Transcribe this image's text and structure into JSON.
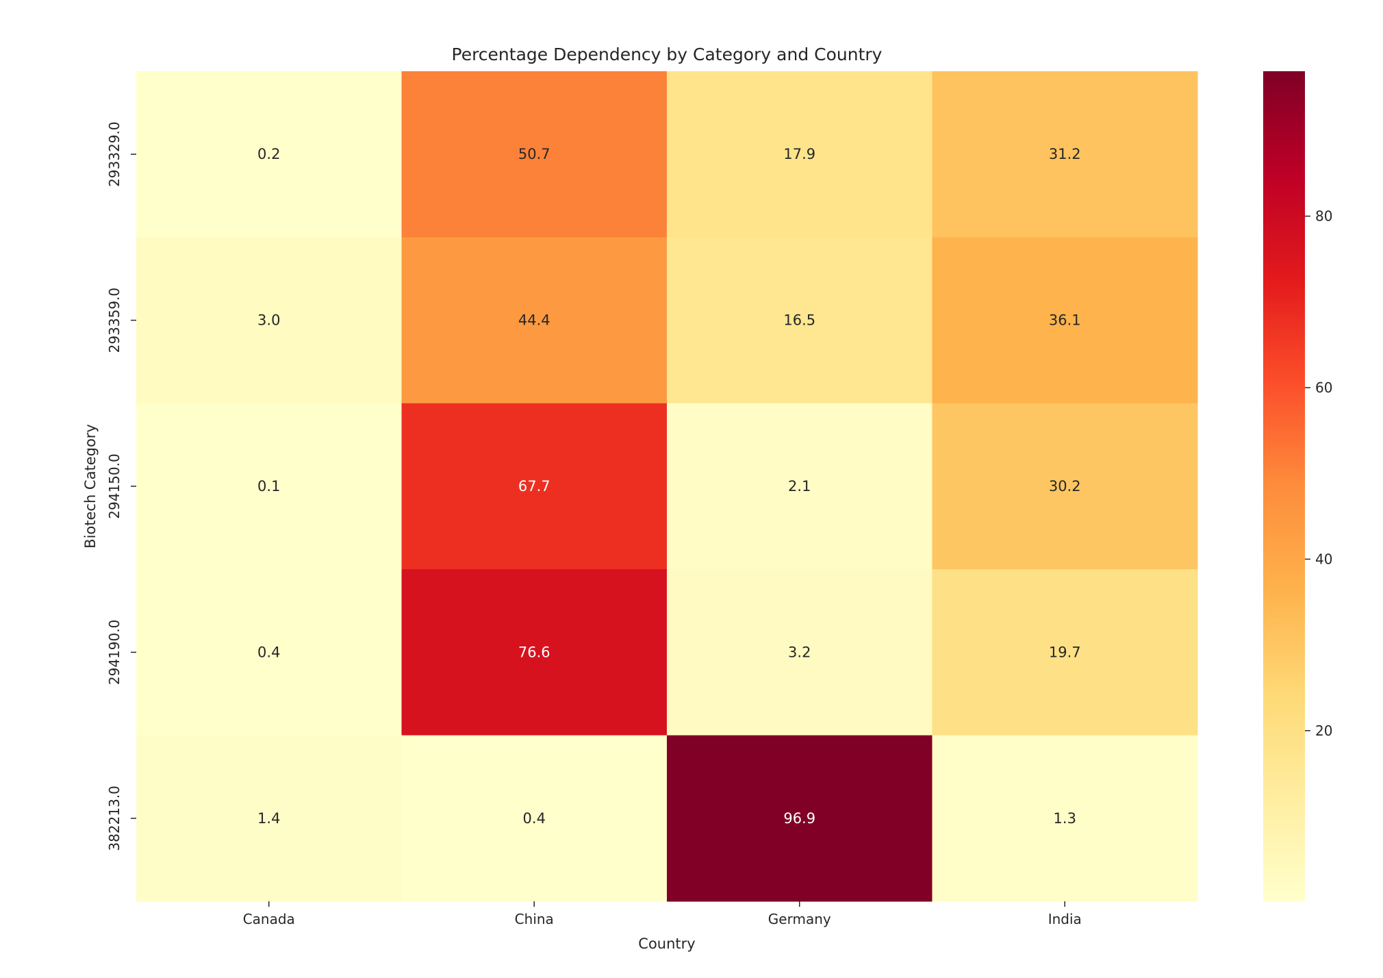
{
  "chart_data": {
    "type": "heatmap",
    "title": "Percentage Dependency by Category and Country",
    "xlabel": "Country",
    "ylabel": "Biotech Category",
    "x_categories": [
      "Canada",
      "China",
      "Germany",
      "India"
    ],
    "y_categories": [
      "293329.0",
      "293359.0",
      "294150.0",
      "294190.0",
      "382213.0"
    ],
    "values": [
      [
        0.2,
        50.7,
        17.9,
        31.2
      ],
      [
        3.0,
        44.4,
        16.5,
        36.1
      ],
      [
        0.1,
        67.7,
        2.1,
        30.2
      ],
      [
        0.4,
        76.6,
        3.2,
        19.7
      ],
      [
        1.4,
        0.4,
        96.9,
        1.3
      ]
    ],
    "annotation_format": "0.0",
    "colormap": "YlOrRd",
    "colormap_stops": [
      "#ffffcc",
      "#ffeda0",
      "#fed976",
      "#feb24c",
      "#fd8d3c",
      "#fc4e2a",
      "#e31a1c",
      "#bd0026",
      "#800026"
    ],
    "colorbar": {
      "range": [
        0.1,
        96.9
      ],
      "ticks": [
        20,
        40,
        60,
        80
      ],
      "tick_labels": [
        "20",
        "40",
        "60",
        "80"
      ]
    },
    "grid": false,
    "legend": "colorbar-right"
  }
}
